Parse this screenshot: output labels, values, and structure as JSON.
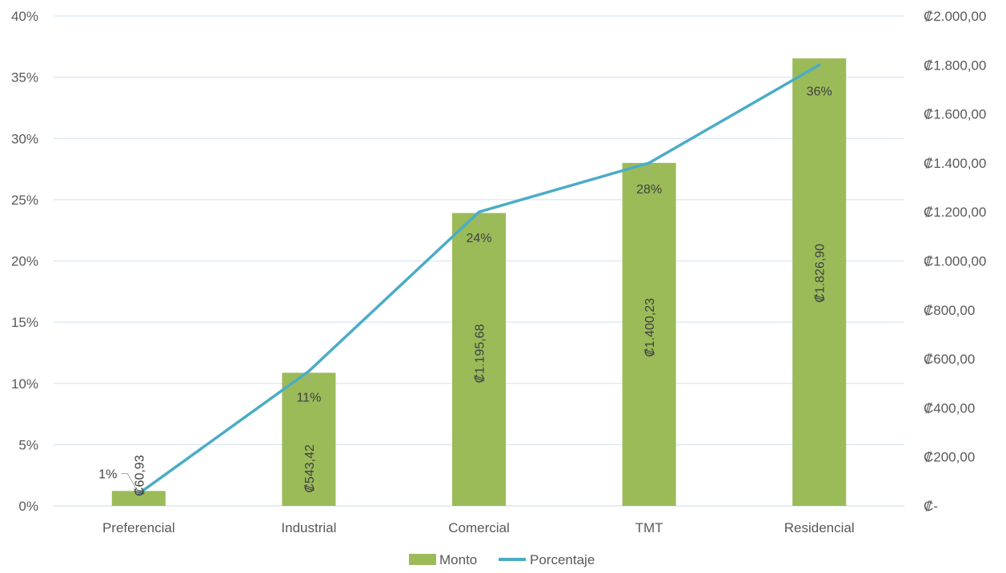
{
  "chart_data": {
    "type": "bar",
    "categories": [
      "Preferencial",
      "Industrial",
      "Comercial",
      "TMT",
      "Residencial"
    ],
    "series": [
      {
        "name": "Monto",
        "type": "bar",
        "axis": "right",
        "values": [
          60.93,
          543.42,
          1195.68,
          1400.23,
          1826.9
        ],
        "labels": [
          "₡60,93",
          "₡543,42",
          "₡1.195,68",
          "₡1.400,23",
          "₡1.826,90"
        ],
        "color": "#9BBB59"
      },
      {
        "name": "Porcentaje",
        "type": "line",
        "axis": "left",
        "values": [
          0.01,
          0.11,
          0.24,
          0.28,
          0.36
        ],
        "labels": [
          "1%",
          "11%",
          "24%",
          "28%",
          "36%"
        ],
        "color": "#4BACC6"
      }
    ],
    "y_left": {
      "range": [
        0,
        0.4
      ],
      "ticks": [
        "0%",
        "5%",
        "10%",
        "15%",
        "20%",
        "25%",
        "30%",
        "35%",
        "40%"
      ]
    },
    "y_right": {
      "range": [
        0,
        2000
      ],
      "ticks": [
        "₡-",
        "₡200,00",
        "₡400,00",
        "₡600,00",
        "₡800,00",
        "₡1.000,00",
        "₡1.200,00",
        "₡1.400,00",
        "₡1.600,00",
        "₡1.800,00",
        "₡2.000,00"
      ]
    },
    "grid": true,
    "legend_position": "bottom",
    "gridline_color": "#D9E6F2",
    "leader_line_color": "#A6A6A6"
  }
}
